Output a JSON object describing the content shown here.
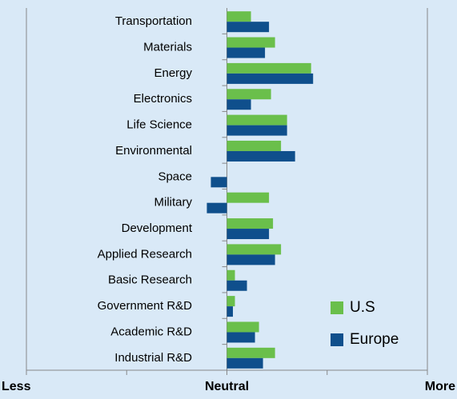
{
  "chart_data": {
    "type": "bar",
    "orientation": "horizontal",
    "categories": [
      "Transportation",
      "Materials",
      "Energy",
      "Electronics",
      "Life Science",
      "Environmental",
      "Space",
      "Military",
      "Development",
      "Applied Research",
      "Basic Research",
      "Government R&D",
      "Academic R&D",
      "Industrial R&D"
    ],
    "series": [
      {
        "name": "U.S",
        "color": "#6abf4b",
        "values": [
          0.12,
          0.24,
          0.42,
          0.22,
          0.3,
          0.27,
          0,
          0.21,
          0.23,
          0.27,
          0.04,
          0.04,
          0.16,
          0.24
        ]
      },
      {
        "name": "Europe",
        "color": "#0f4f8c",
        "values": [
          0.21,
          0.19,
          0.43,
          0.12,
          0.3,
          0.34,
          -0.08,
          -0.1,
          0.21,
          0.24,
          0.1,
          0.03,
          0.14,
          0.18
        ]
      }
    ],
    "xlim": [
      -1,
      1
    ],
    "xticks": [
      {
        "value": -1,
        "label": "Less"
      },
      {
        "value": -0.5,
        "label": null
      },
      {
        "value": 0,
        "label": "Neutral"
      },
      {
        "value": 0.5,
        "label": null
      },
      {
        "value": 1,
        "label": "More"
      }
    ],
    "legend": "lower right"
  }
}
